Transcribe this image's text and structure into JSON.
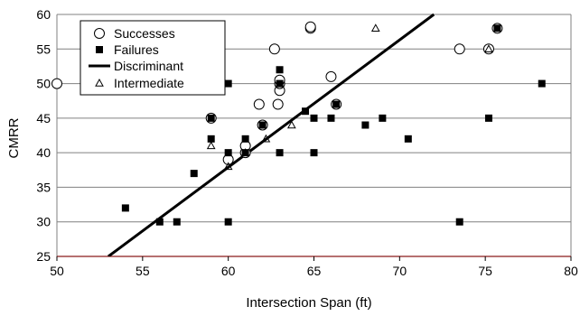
{
  "chart_data": {
    "type": "scatter",
    "xlabel": "Intersection Span (ft)",
    "ylabel": "CMRR",
    "xlim": [
      50,
      80
    ],
    "ylim": [
      25,
      60
    ],
    "x_ticks": [
      50,
      55,
      60,
      65,
      70,
      75,
      80
    ],
    "y_ticks": [
      25,
      30,
      35,
      40,
      45,
      50,
      55,
      60
    ],
    "grid": "horizontal",
    "legend_position": "top-left",
    "series": [
      {
        "name": "Successes",
        "marker": "open-circle",
        "points": [
          [
            50,
            50
          ],
          [
            59,
            45
          ],
          [
            60,
            39
          ],
          [
            61,
            40
          ],
          [
            61,
            41
          ],
          [
            61.8,
            47
          ],
          [
            62,
            44
          ],
          [
            62.7,
            55
          ],
          [
            62.9,
            47
          ],
          [
            63,
            49
          ],
          [
            63,
            50
          ],
          [
            63,
            50.5
          ],
          [
            64.8,
            58
          ],
          [
            64.8,
            58.2
          ],
          [
            66,
            51
          ],
          [
            66.3,
            47
          ],
          [
            73.5,
            55
          ],
          [
            75.2,
            55
          ],
          [
            75.7,
            58
          ]
        ]
      },
      {
        "name": "Failures",
        "marker": "filled-square",
        "points": [
          [
            54,
            32
          ],
          [
            56,
            30
          ],
          [
            57,
            30
          ],
          [
            58,
            37
          ],
          [
            59,
            42
          ],
          [
            59,
            45
          ],
          [
            60,
            30
          ],
          [
            60,
            40
          ],
          [
            60,
            50
          ],
          [
            61,
            40
          ],
          [
            61,
            42
          ],
          [
            62,
            44
          ],
          [
            63,
            40
          ],
          [
            63,
            50
          ],
          [
            63,
            52
          ],
          [
            64.5,
            46
          ],
          [
            65,
            40
          ],
          [
            65,
            45
          ],
          [
            66,
            45
          ],
          [
            66.3,
            47
          ],
          [
            68,
            44
          ],
          [
            69,
            45
          ],
          [
            70.5,
            42
          ],
          [
            73.5,
            30
          ],
          [
            75.2,
            45
          ],
          [
            75.7,
            58
          ],
          [
            78.3,
            50
          ]
        ]
      },
      {
        "name": "Discriminant",
        "marker": "line",
        "points": [
          [
            53,
            25
          ],
          [
            72,
            60
          ]
        ]
      },
      {
        "name": "Intermediate",
        "marker": "open-triangle",
        "points": [
          [
            59,
            41
          ],
          [
            60,
            38
          ],
          [
            61,
            40
          ],
          [
            62.2,
            42
          ],
          [
            63.7,
            44
          ],
          [
            68.6,
            58
          ],
          [
            75.2,
            55
          ]
        ]
      }
    ]
  }
}
